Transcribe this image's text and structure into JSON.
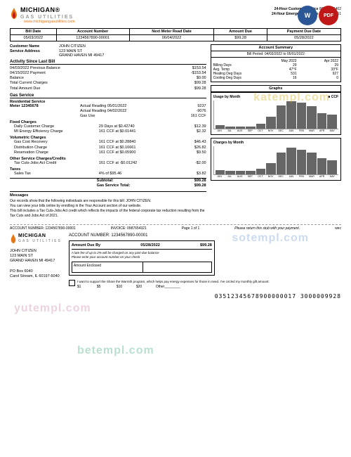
{
  "logo": {
    "brand": "MICHIGAN",
    "sub": "GAS UTILITIES",
    "reg": "®",
    "flame_colors": [
      "#e67817",
      "#c01818"
    ]
  },
  "website": "www.michigangasutilities.com",
  "contact": {
    "line1": "24-Hour Customer Service",
    "phone1": "800-401-6402",
    "line2": "24-Hour Emergency Service",
    "phone2": "800-401-6451"
  },
  "header": {
    "cols": [
      "Bill Date",
      "Account Number",
      "Next Meter Read Date",
      "Amount Due",
      "Payment Due Date"
    ],
    "vals": [
      "05/03/2022",
      "1234567890-00001",
      "06/04/2022",
      "$99.28",
      "05/28/2022"
    ]
  },
  "customer": {
    "name_label": "Customer Name",
    "name": "JOHN CITIZEN",
    "addr_label": "Service Address",
    "addr1": "123 MAIN ST",
    "addr2": "GRAND HAVEN MI 49417"
  },
  "activity": {
    "title": "Activity Since Last Bill",
    "rows": [
      [
        "04/03/2022 Previous Balance",
        "",
        "$153.54"
      ],
      [
        "04/15/2022 Payment",
        "",
        "-$153.54"
      ],
      [
        "Balance",
        "",
        "$0.00"
      ],
      [
        "Total Current Charges",
        "",
        "$99.28"
      ],
      [
        "Total Amount Due",
        "",
        "$99.28"
      ]
    ]
  },
  "gas_service": {
    "title": "Gas Service",
    "sub": "Residential Service",
    "meter": "Meter 12345678",
    "readings": [
      [
        "Actual Reading 05/01/2022",
        "9237"
      ],
      [
        "Actual Reading 04/02/2022",
        "-9076"
      ],
      [
        "Gas Use",
        "161 CCF"
      ]
    ]
  },
  "charges": {
    "groups": [
      {
        "title": "Fixed Charges",
        "rows": [
          [
            "Daily Customer Charge",
            "29 Days at $0.42740",
            "$12.39"
          ],
          [
            "MI Energy Efficiency Charge",
            "161 CCF at $0.01441",
            "$2.32"
          ]
        ]
      },
      {
        "title": "Volumetric Charges",
        "rows": [
          [
            "Gas Cost Recovery",
            "161 CCF at $0.28840",
            "$46.43"
          ],
          [
            "Distribution Charge",
            "161 CCF at $0.16661",
            "$26.82"
          ],
          [
            "Reservation Charge",
            "161 CCF at $0.05900",
            "$9.50"
          ]
        ]
      },
      {
        "title": "Other Service Charges/Credits",
        "rows": [
          [
            "Tax Cuts-Jobs Act Credit",
            "161 CCF at -$0.01242",
            "-$2.00"
          ]
        ]
      },
      {
        "title": "Taxes",
        "rows": [
          [
            "Sales Tax",
            "4% of $95.46",
            "$3.82"
          ]
        ]
      }
    ],
    "subtotal": [
      "Subtotal:",
      "$99.28"
    ],
    "total": [
      "Gas Service Total:",
      "$99.28"
    ]
  },
  "summary": {
    "title": "Account Summary",
    "period": "Bill Period: 04/03/2022 to 05/01/2022",
    "cols": [
      "",
      "May 2022",
      "Apr 2022"
    ],
    "rows": [
      [
        "Billing Days",
        "29",
        "29"
      ],
      [
        "Avg. Temp",
        "47°F",
        "33°F"
      ],
      [
        "Heating Deg Days",
        "531",
        "927"
      ],
      [
        "Cooling Deg Days",
        "16",
        "0"
      ]
    ]
  },
  "graphs": {
    "title": "Graphs",
    "usage": {
      "title": "Usage by Month",
      "legend": "CCF",
      "ymax": 325,
      "months": [
        "JUN",
        "JUL",
        "AUG",
        "SEP",
        "OCT",
        "NOV",
        "DEC",
        "JAN",
        "FEB",
        "MAR",
        "APR",
        "MAY"
      ],
      "values": [
        40,
        25,
        25,
        25,
        60,
        140,
        270,
        320,
        300,
        260,
        180,
        160
      ],
      "bar_color": "#666",
      "grid_color": "#ccc"
    },
    "charges": {
      "title": "Charges by Month",
      "ymax": 200,
      "months": [
        "JUN",
        "JUL",
        "AUG",
        "SEP",
        "OCT",
        "NOV",
        "DEC",
        "JAN",
        "FEB",
        "MAR",
        "APR",
        "MAY"
      ],
      "values": [
        30,
        25,
        25,
        25,
        40,
        80,
        155,
        190,
        175,
        155,
        115,
        100
      ],
      "bar_color": "#666"
    }
  },
  "messages": {
    "title": "Messages",
    "lines": [
      "Our records show that the following individuals are responsible for this bill: JOHN CITIZEN.",
      "You can view your bills online by enrolling in the Your Account section of our website.",
      "This bill includes a Tax Cuts-Jobs Act credit which reflects the impacts of the federal corporate tax reduction resulting from the Tax Cuts and Jobs Act of 2021."
    ]
  },
  "divider": {
    "acct": "ACCOUNT NUMBER: 1234567890-00001",
    "invoice": "INVOICE: 0987654321",
    "page": "Page 1 of 1",
    "note": "Please return this stub with your payment.",
    "wec": "wec"
  },
  "stub": {
    "acct_label": "ACCOUNT NUMBER:",
    "acct": "1234567890-00001",
    "amt_label": "Amount Due By",
    "date": "05/28/2022",
    "amt": "$99.28",
    "late": "A late fee of up to 2% will be charged on any past-due balance",
    "write": "Please write your account number on your check",
    "enclosed": "Amount Enclosed",
    "addr": [
      "JOHN CITIZEN",
      "123 MAIN ST",
      "GRAND HAVEN MI 49417"
    ],
    "return": [
      "PO Box 6040",
      "Carol Stream, IL 60197-6040"
    ],
    "donation": "I want to support the Share the Warmth program, which helps pay energy expenses for those in need. I've circled my monthly gift amount:",
    "donation_amts": [
      "$1",
      "$5",
      "$10",
      "$20",
      "Other________"
    ],
    "barcode": "03512345678900000017      3000009928"
  },
  "watermarks": [
    "katempl.com",
    "sotempl.com",
    "yutempl.com",
    "betempl.com"
  ]
}
